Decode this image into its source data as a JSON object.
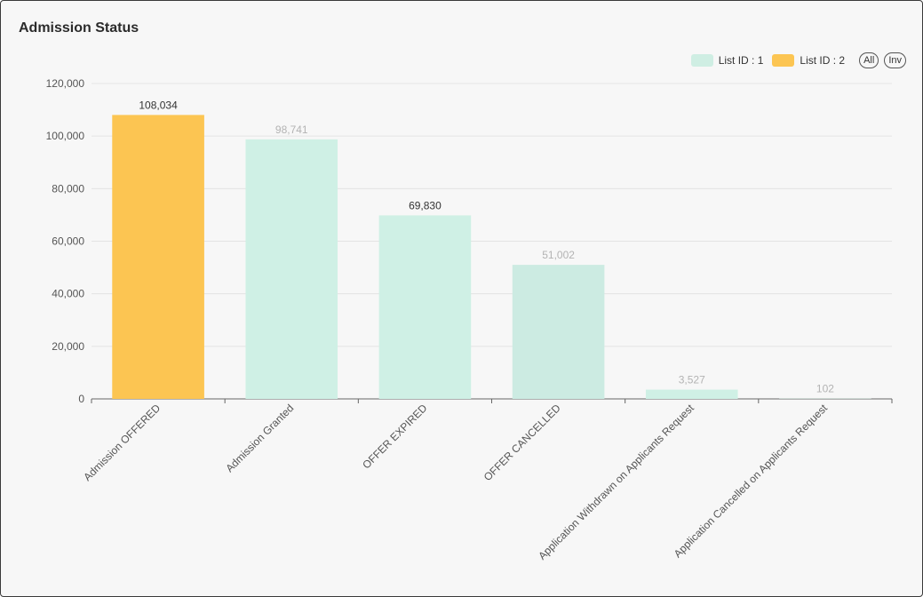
{
  "card": {
    "title": "Admission Status"
  },
  "legend": {
    "items": [
      {
        "label": "List ID : 1",
        "color": "#cfeee3"
      },
      {
        "label": "List ID : 2",
        "color": "#fcc552"
      }
    ],
    "all_label": "All",
    "inv_label": "Inv"
  },
  "chart_data": {
    "type": "bar",
    "title": "Admission Status",
    "categories": [
      "Admission OFFERED",
      "Admission Granted",
      "OFFER EXPIRED",
      "OFFER CANCELLED",
      "Application Withdrawn on Applicants Request",
      "Application Cancelled on Applicants Request"
    ],
    "values": [
      108034,
      98741,
      69830,
      51002,
      3527,
      102
    ],
    "value_labels": [
      "108,034",
      "98,741",
      "69,830",
      "51,002",
      "3,527",
      "102"
    ],
    "bar_colors": [
      "#fcc552",
      "#cff0e5",
      "#cff0e5",
      "#ccebe2",
      "#cff0e5",
      "#cff0e5"
    ],
    "label_colors": [
      "#333333",
      "#b3b3b3",
      "#333333",
      "#b3b3b3",
      "#b3b3b3",
      "#b3b3b3"
    ],
    "y_ticks": [
      0,
      20000,
      40000,
      60000,
      80000,
      100000,
      120000
    ],
    "y_tick_labels": [
      "0",
      "20,000",
      "40,000",
      "60,000",
      "80,000",
      "100,000",
      "120,000"
    ],
    "ylim": [
      0,
      120000
    ],
    "xlabel": "",
    "ylabel": "",
    "grid": true,
    "legend_position": "top-right"
  }
}
